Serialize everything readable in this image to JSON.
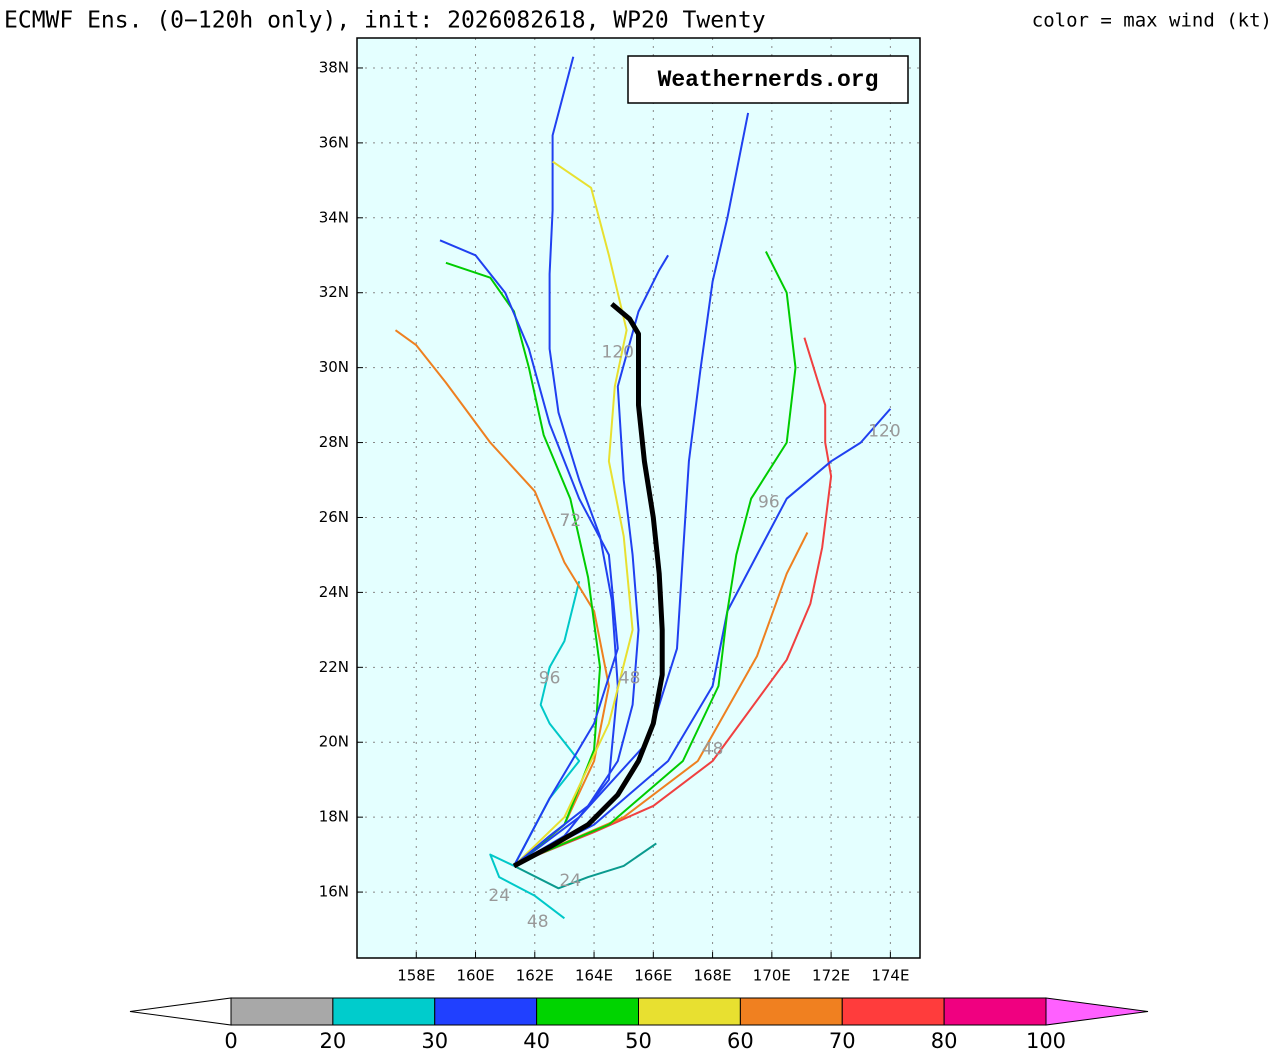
{
  "chart_data": {
    "type": "track",
    "title": "ECMWF Ens. (0−120h only), init: 2026082618, WP20 Twenty",
    "watermark": "Weathernerds.org",
    "background": "#e4ffff",
    "grid": true,
    "xlim": [
      156,
      175
    ],
    "ylim": [
      14.24,
      38.8
    ],
    "xticks": [
      {
        "value": 158,
        "label": "158E"
      },
      {
        "value": 160,
        "label": "160E"
      },
      {
        "value": 162,
        "label": "162E"
      },
      {
        "value": 164,
        "label": "164E"
      },
      {
        "value": 166,
        "label": "166E"
      },
      {
        "value": 168,
        "label": "168E"
      },
      {
        "value": 170,
        "label": "170E"
      },
      {
        "value": 172,
        "label": "172E"
      },
      {
        "value": 174,
        "label": "174E"
      }
    ],
    "yticks": [
      {
        "value": 16,
        "label": "16N"
      },
      {
        "value": 18,
        "label": "18N"
      },
      {
        "value": 20,
        "label": "20N"
      },
      {
        "value": 22,
        "label": "22N"
      },
      {
        "value": 24,
        "label": "24N"
      },
      {
        "value": 26,
        "label": "26N"
      },
      {
        "value": 28,
        "label": "28N"
      },
      {
        "value": 30,
        "label": "30N"
      },
      {
        "value": 32,
        "label": "32N"
      },
      {
        "value": 34,
        "label": "34N"
      },
      {
        "value": 36,
        "label": "36N"
      },
      {
        "value": 38,
        "label": "38N"
      }
    ],
    "series": [
      {
        "color": "#0a9a8e",
        "lon": [
          161.3,
          162.8,
          163.8,
          165,
          166.1
        ],
        "lat": [
          16.7,
          16.1,
          16.4,
          16.7,
          17.3
        ]
      },
      {
        "color": "#00c8c8",
        "lon": [
          161.3,
          160.5,
          160.8,
          162,
          163
        ],
        "lat": [
          16.7,
          17,
          16.4,
          15.9,
          15.3
        ]
      },
      {
        "color": "#00c8c8",
        "lon": [
          161.3,
          162.5,
          163.5,
          162.5,
          162.2,
          162.5,
          163,
          163.5
        ],
        "lat": [
          16.7,
          18.5,
          19.5,
          20.5,
          21,
          22,
          22.7,
          24.3
        ]
      },
      {
        "color": "#ee8020",
        "lon": [
          161.5,
          163,
          164,
          164.5,
          164,
          163,
          162,
          160.5,
          159,
          158,
          157.3
        ],
        "lat": [
          16.8,
          17.8,
          19.5,
          21.5,
          23.5,
          24.8,
          26.7,
          28,
          29.6,
          30.6,
          31
        ]
      },
      {
        "color": "#f04040",
        "lon": [
          161.5,
          164,
          166,
          168,
          170.5,
          171.3,
          171.7,
          172,
          171.8,
          171.8,
          171.1
        ],
        "lat": [
          16.8,
          17.6,
          18.3,
          19.5,
          22.2,
          23.7,
          25.2,
          27.1,
          28,
          29,
          30.8
        ]
      },
      {
        "color": "#ee8020",
        "lon": [
          161.5,
          165,
          167.5,
          169.5,
          170.5,
          171.2
        ],
        "lat": [
          16.8,
          18,
          19.5,
          22.3,
          24.5,
          25.6
        ]
      },
      {
        "color": "#2040f0",
        "lon": [
          161.5,
          164,
          166.5,
          168,
          168.5,
          169.5,
          170.5,
          172,
          173,
          174
        ],
        "lat": [
          16.8,
          17.8,
          19.5,
          21.5,
          23.5,
          25,
          26.5,
          27.5,
          28,
          28.9
        ]
      },
      {
        "color": "#00cc00",
        "lon": [
          161.5,
          164.5,
          167,
          168.2,
          168.5,
          168.8,
          169.3,
          170.5,
          170.8,
          170.5,
          169.8
        ],
        "lat": [
          16.8,
          17.8,
          19.5,
          21.5,
          23.5,
          25,
          26.5,
          28,
          30,
          32,
          33.1
        ]
      },
      {
        "color": "#2040f0",
        "lon": [
          161.3,
          163.5,
          165.8,
          166.8,
          167,
          167.2,
          167.6,
          168,
          168.5,
          168.9,
          169.2
        ],
        "lat": [
          16.7,
          18,
          20,
          22.5,
          25,
          27.5,
          30,
          32.3,
          34,
          35.6,
          36.8
        ]
      },
      {
        "color": "#2040f0",
        "lon": [
          161.3,
          163,
          164.5,
          164.8,
          164.6,
          164.2,
          163.5,
          162.8,
          162.5,
          162.5,
          162.6,
          162.6,
          163.3
        ],
        "lat": [
          16.7,
          17.5,
          19,
          21.5,
          23.8,
          25.5,
          27,
          28.8,
          30.5,
          32.5,
          34.2,
          36.2,
          38.3
        ]
      },
      {
        "color": "#00cc00",
        "lon": [
          161.3,
          163,
          164,
          164.2,
          163.8,
          163.2,
          162.3,
          161.8,
          161.3,
          160.5,
          159
        ],
        "lat": [
          16.7,
          17.8,
          19.8,
          22,
          24.4,
          26.5,
          28.2,
          30,
          31.5,
          32.4,
          32.8
        ]
      },
      {
        "color": "#e8e030",
        "lon": [
          161.3,
          163,
          164.5,
          165.3,
          165,
          164.5,
          164.7,
          165.1,
          164.5,
          163.9,
          162.6
        ],
        "lat": [
          16.7,
          18,
          20.5,
          23,
          25.5,
          27.5,
          29.5,
          31,
          33,
          34.8,
          35.5
        ]
      },
      {
        "color": "#2040f0",
        "lon": [
          161.3,
          162.5,
          164,
          164.8,
          164.5,
          163.5,
          162.5,
          161.8,
          161,
          160,
          158.8
        ],
        "lat": [
          16.7,
          18.5,
          20.5,
          22.5,
          25,
          26.5,
          28.5,
          30.5,
          32,
          33,
          33.4
        ]
      },
      {
        "color": "#2040f0",
        "lon": [
          161.3,
          162.5,
          163.8,
          164.8,
          165.3,
          165.5,
          165.3,
          165,
          164.8,
          165.5,
          166.2,
          166.5
        ],
        "lat": [
          16.7,
          17.5,
          18.3,
          19.5,
          21,
          23,
          25,
          27,
          29.5,
          31.5,
          32.6,
          33
        ]
      },
      {
        "color": "#000000",
        "width": 5,
        "lon": [
          161.3,
          162.5,
          163.8,
          164.8,
          165.5,
          166,
          166.3,
          166.3,
          166.2,
          166,
          165.7,
          165.5,
          165.5,
          165.2,
          164.6
        ],
        "lat": [
          16.7,
          17.2,
          17.8,
          18.6,
          19.5,
          20.5,
          21.8,
          23,
          24.5,
          26,
          27.5,
          29,
          30.9,
          31.3,
          31.7
        ]
      }
    ],
    "annotations": [
      {
        "text": "120",
        "lon": 164.8,
        "lat": 30.4
      },
      {
        "text": "120",
        "lon": 173.8,
        "lat": 28.3
      },
      {
        "text": "96",
        "lon": 169.9,
        "lat": 26.4
      },
      {
        "text": "96",
        "lon": 162.5,
        "lat": 21.7
      },
      {
        "text": "72",
        "lon": 163.2,
        "lat": 25.9
      },
      {
        "text": "48",
        "lon": 165.2,
        "lat": 21.7
      },
      {
        "text": "48",
        "lon": 168,
        "lat": 19.8
      },
      {
        "text": "48",
        "lon": 162.1,
        "lat": 15.2
      },
      {
        "text": "24",
        "lon": 160.8,
        "lat": 15.9
      },
      {
        "text": "24",
        "lon": 163.2,
        "lat": 16.3
      }
    ],
    "colorbar": {
      "label": "color = max wind (kt)",
      "bounds": [
        0,
        20,
        30,
        40,
        50,
        60,
        70,
        80,
        100
      ],
      "colors": [
        "#a8a8a8",
        "#00cccc",
        "#2040ff",
        "#00d400",
        "#e8e030",
        "#f08020",
        "#ff3c3c",
        "#f00080"
      ],
      "under_color": "#ffffff",
      "over_color": "#ff60ff"
    }
  }
}
